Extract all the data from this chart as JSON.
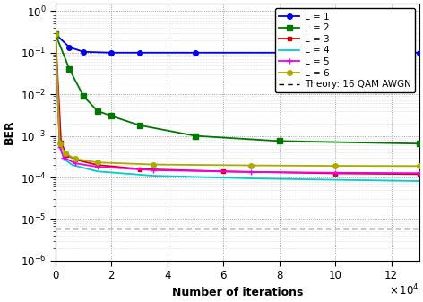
{
  "xlabel": "Number of iterations",
  "ylabel": "BER",
  "xlim": [
    0,
    130000
  ],
  "ylim": [
    1e-06,
    1.5
  ],
  "background_color": "#f0f0f0",
  "plot_bg_color": "#f8f8f8",
  "grid_color": "#999999",
  "theory_value": 6e-06,
  "series": [
    {
      "label": "L = 1",
      "color": "#0000ee",
      "marker": "o",
      "marker_size": 4,
      "linewidth": 1.3,
      "x": [
        0,
        5000,
        10000,
        20000,
        30000,
        50000,
        80000,
        130000
      ],
      "y": [
        0.28,
        0.135,
        0.105,
        0.1,
        0.1,
        0.1,
        0.1,
        0.1
      ]
    },
    {
      "label": "L = 2",
      "color": "#007700",
      "marker": "s",
      "marker_size": 4,
      "linewidth": 1.3,
      "x": [
        0,
        5000,
        10000,
        15000,
        20000,
        30000,
        50000,
        80000,
        130000
      ],
      "y": [
        0.28,
        0.04,
        0.009,
        0.004,
        0.003,
        0.0018,
        0.001,
        0.00075,
        0.00065
      ]
    },
    {
      "label": "L = 3",
      "color": "#dd0000",
      "marker": "s",
      "marker_size": 3,
      "linewidth": 1.3,
      "x": [
        0,
        2000,
        4000,
        7000,
        15000,
        30000,
        60000,
        100000,
        130000
      ],
      "y": [
        0.28,
        0.0007,
        0.00035,
        0.00027,
        0.0002,
        0.00016,
        0.00014,
        0.000125,
        0.00012
      ]
    },
    {
      "label": "L = 4",
      "color": "#00cccc",
      "marker": null,
      "marker_size": 0,
      "linewidth": 1.3,
      "x": [
        0,
        1500,
        3000,
        6000,
        15000,
        35000,
        70000,
        100000,
        130000
      ],
      "y": [
        0.28,
        0.0006,
        0.00028,
        0.0002,
        0.00014,
        0.00011,
        9.5e-05,
        8.8e-05,
        8.2e-05
      ]
    },
    {
      "label": "L = 5",
      "color": "#ee00ee",
      "marker": "+",
      "marker_size": 5,
      "linewidth": 1.3,
      "x": [
        0,
        1500,
        3000,
        7000,
        15000,
        35000,
        70000,
        100000,
        130000
      ],
      "y": [
        0.28,
        0.00055,
        0.0003,
        0.00022,
        0.00018,
        0.00015,
        0.000135,
        0.00013,
        0.000127
      ]
    },
    {
      "label": "L = 6",
      "color": "#aaaa00",
      "marker": "o",
      "marker_size": 4,
      "linewidth": 1.3,
      "x": [
        0,
        1500,
        3500,
        7000,
        15000,
        35000,
        70000,
        100000,
        130000
      ],
      "y": [
        0.28,
        0.00065,
        0.00038,
        0.00028,
        0.00023,
        0.000205,
        0.000195,
        0.00019,
        0.000188
      ]
    }
  ],
  "xticks": [
    0,
    20000,
    40000,
    60000,
    80000,
    100000,
    120000
  ],
  "xtick_labels": [
    "0",
    "2",
    "4",
    "6",
    "8",
    "10",
    "12"
  ],
  "yticks": [
    1e-06,
    1e-05,
    0.0001,
    0.001,
    0.01,
    0.1,
    1.0
  ],
  "legend_fontsize": 7.5,
  "axis_fontsize": 9,
  "tick_fontsize": 8.5
}
